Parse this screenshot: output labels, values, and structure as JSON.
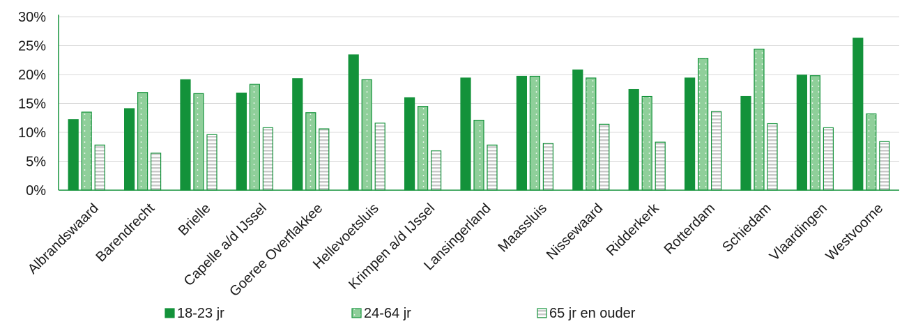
{
  "chart_data": {
    "type": "bar",
    "categories": [
      "Albrandswaard",
      "Barendrecht",
      "Brielle",
      "Capelle a/d IJssel",
      "Goeree Overflakkee",
      "Hellevoetsluis",
      "Krimpen a/d IJssel",
      "Lansingerland",
      "Maassluis",
      "Nissewaard",
      "Ridderkerk",
      "Rotterdam",
      "Schiedam",
      "Vlaardingen",
      "Westvoorne"
    ],
    "series": [
      {
        "name": "18-23 jr",
        "values": [
          12.2,
          14.1,
          19.1,
          16.8,
          19.3,
          23.4,
          16.0,
          19.4,
          19.7,
          20.8,
          17.4,
          19.4,
          16.2,
          19.9,
          26.3
        ],
        "color": "#13923a",
        "pattern": "solid"
      },
      {
        "name": "24-64 jr",
        "values": [
          13.5,
          16.9,
          16.7,
          18.3,
          13.4,
          19.1,
          14.5,
          12.1,
          19.7,
          19.4,
          16.2,
          22.8,
          24.4,
          19.8,
          13.2
        ],
        "color": "#8fcf9a",
        "pattern": "dotted"
      },
      {
        "name": "65 jr en ouder",
        "values": [
          7.8,
          6.4,
          9.6,
          10.8,
          10.6,
          11.6,
          6.8,
          7.8,
          8.1,
          11.4,
          8.3,
          13.6,
          11.5,
          10.8,
          8.4
        ],
        "color": "#c9c9c9",
        "pattern": "striped"
      }
    ],
    "yticks": [
      "0%",
      "5%",
      "10%",
      "15%",
      "20%",
      "25%",
      "30%"
    ],
    "ylim": [
      0,
      30
    ],
    "grid": "horizontal",
    "legend_position": "bottom"
  }
}
